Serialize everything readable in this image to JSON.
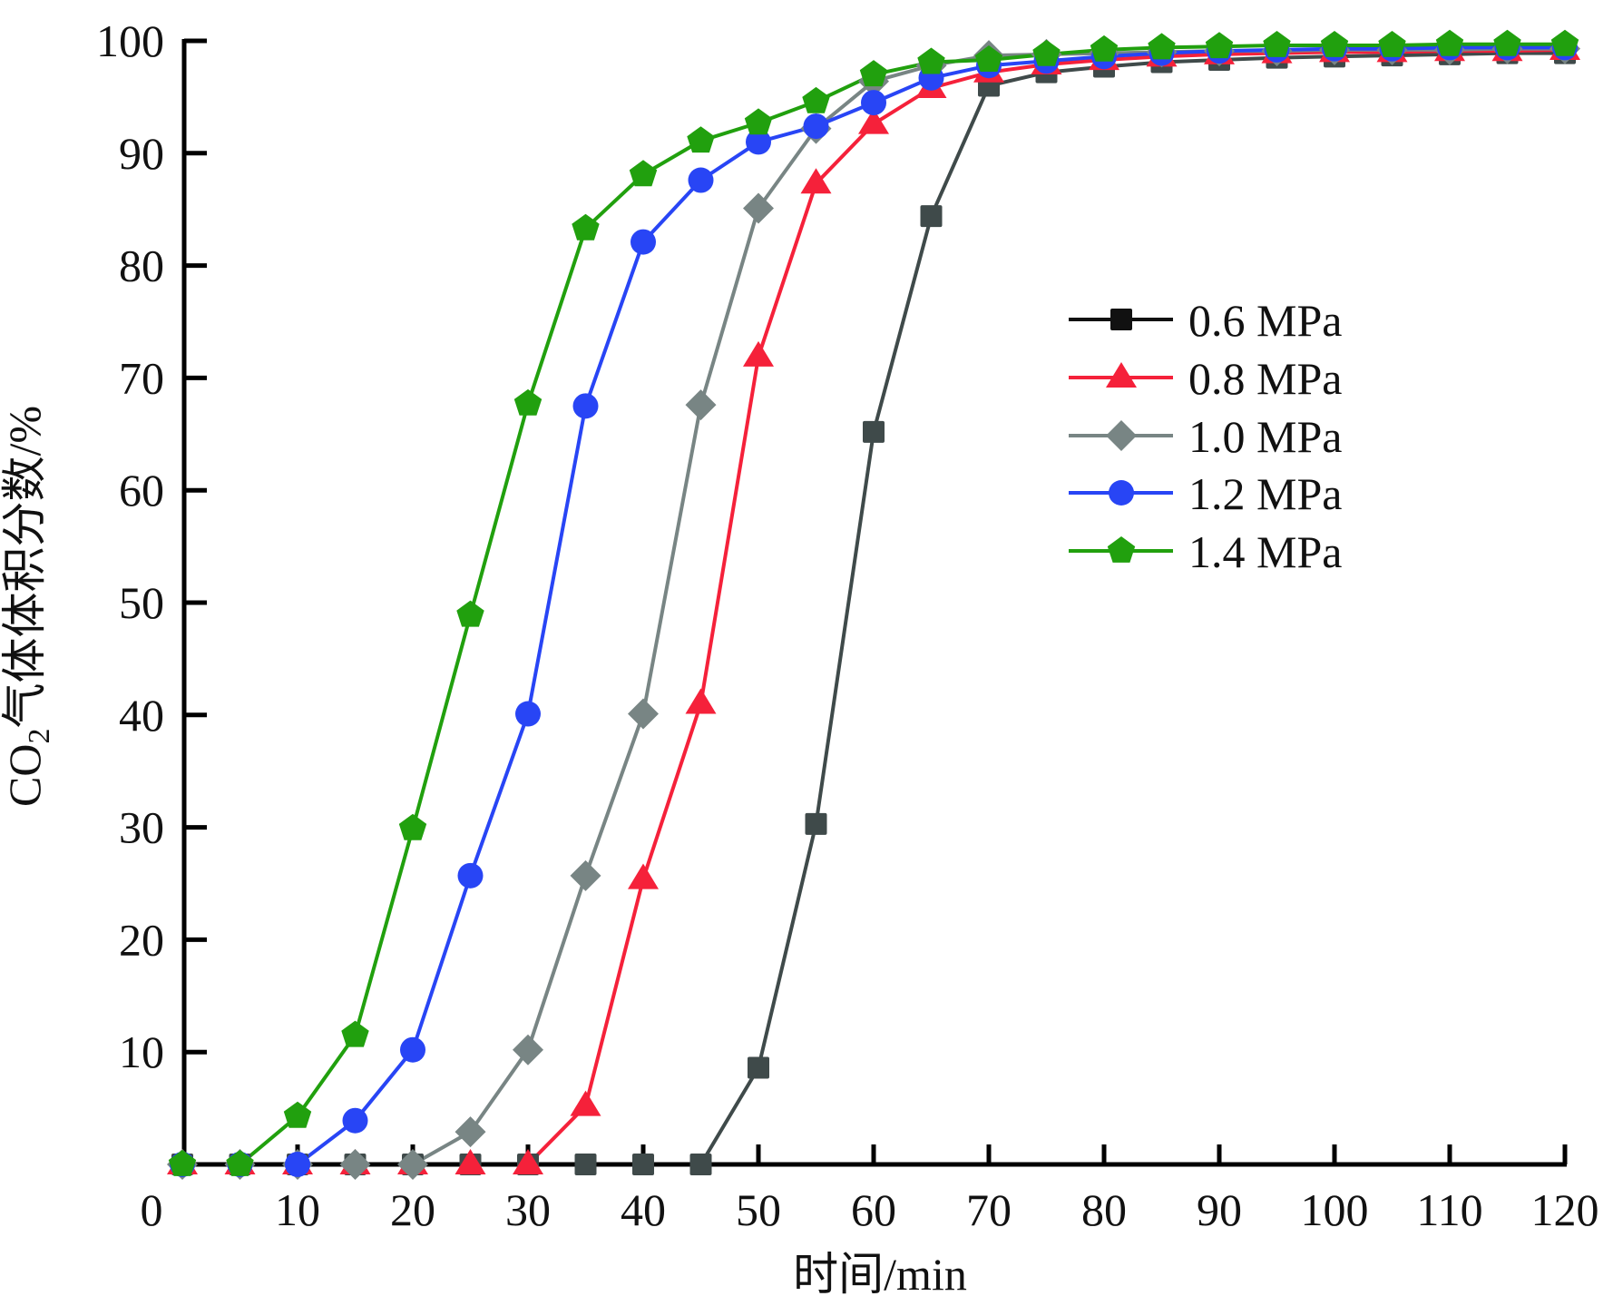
{
  "chart_data": {
    "type": "line",
    "title": "",
    "xlabel": "时间/min",
    "ylabel_main": "CO",
    "ylabel_sub": "2",
    "ylabel_rest": "气体体积分数/%",
    "ylabel": "CO2气体体积分数/%",
    "xlim": [
      0,
      120
    ],
    "ylim": [
      0,
      100
    ],
    "grid": false,
    "legend_position": "right-upper",
    "x_ticks": [
      0,
      10,
      20,
      30,
      40,
      50,
      60,
      70,
      80,
      90,
      100,
      110,
      120
    ],
    "x_tick_labels": [
      "0",
      "10",
      "20",
      "30",
      "40",
      "50",
      "60",
      "70",
      "80",
      "90",
      "100",
      "110",
      "120"
    ],
    "y_ticks": [
      10,
      20,
      30,
      40,
      50,
      60,
      70,
      80,
      90,
      100
    ],
    "y_tick_labels": [
      "10",
      "20",
      "30",
      "40",
      "50",
      "60",
      "70",
      "80",
      "90",
      "100"
    ],
    "x": [
      0,
      5,
      10,
      15,
      20,
      25,
      30,
      35,
      40,
      45,
      50,
      55,
      60,
      65,
      70,
      75,
      80,
      85,
      90,
      95,
      100,
      105,
      110,
      115,
      120
    ],
    "series": [
      {
        "name": "0.6 MPa",
        "color": "#3f4a4a",
        "legend_color": "#111111",
        "marker": "square",
        "values": [
          0,
          0,
          0,
          0,
          0,
          0,
          0,
          0,
          0,
          0,
          8.6,
          30.3,
          65.2,
          84.4,
          96.0,
          97.2,
          97.7,
          98.1,
          98.3,
          98.5,
          98.6,
          98.7,
          98.8,
          98.9,
          98.9
        ]
      },
      {
        "name": "0.8 MPa",
        "color": "#f5213a",
        "legend_color": "#f5213a",
        "marker": "triangle",
        "values": [
          0,
          0,
          0,
          0,
          0,
          0,
          0,
          5.2,
          25.4,
          41.0,
          71.9,
          87.3,
          92.6,
          95.8,
          97.2,
          97.9,
          98.3,
          98.6,
          98.8,
          98.9,
          99.0,
          99.0,
          99.1,
          99.1,
          99.2
        ]
      },
      {
        "name": "1.0 MPa",
        "color": "#788584",
        "legend_color": "#788584",
        "marker": "diamond",
        "values": [
          0,
          0,
          0,
          0,
          0,
          2.9,
          10.2,
          25.7,
          40.1,
          67.6,
          85.1,
          92.2,
          96.4,
          97.8,
          98.7,
          98.8,
          98.9,
          99.0,
          99.1,
          99.1,
          99.2,
          99.2,
          99.2,
          99.3,
          99.3
        ]
      },
      {
        "name": "1.2 MPa",
        "color": "#2845f5",
        "legend_color": "#2845f5",
        "marker": "circle",
        "values": [
          0,
          0,
          0,
          3.9,
          10.2,
          25.7,
          40.1,
          67.5,
          82.1,
          87.6,
          91.0,
          92.4,
          94.5,
          96.7,
          97.8,
          98.2,
          98.6,
          98.9,
          99.1,
          99.2,
          99.3,
          99.3,
          99.4,
          99.4,
          99.4
        ]
      },
      {
        "name": "1.4 MPa",
        "color": "#21a00e",
        "legend_color": "#21a00e",
        "marker": "pentagon",
        "values": [
          0,
          0,
          4.3,
          11.5,
          29.9,
          48.9,
          67.7,
          83.3,
          88.1,
          91.1,
          92.7,
          94.6,
          97.0,
          98.1,
          98.3,
          98.8,
          99.2,
          99.4,
          99.5,
          99.6,
          99.6,
          99.6,
          99.7,
          99.7,
          99.7
        ]
      }
    ]
  }
}
